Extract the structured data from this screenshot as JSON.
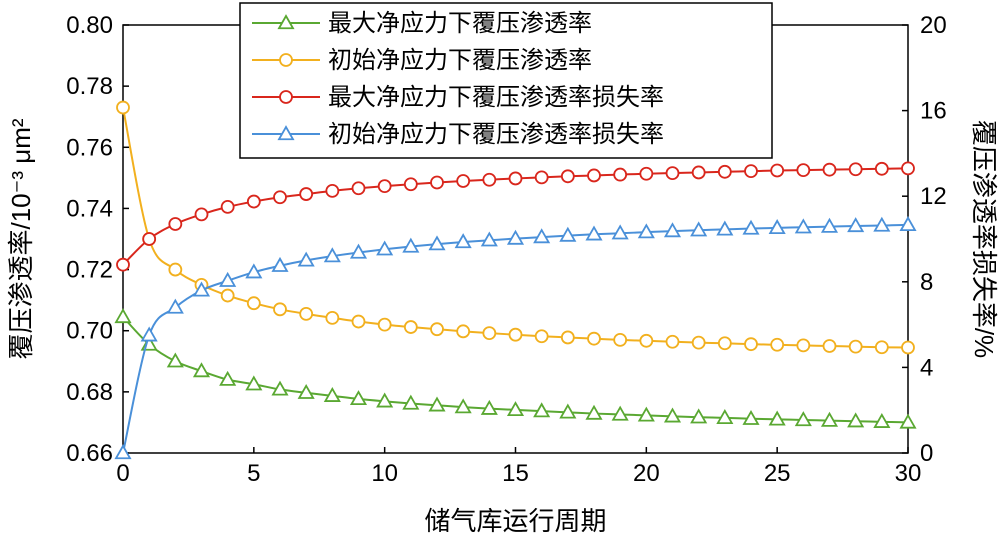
{
  "chart_data": {
    "type": "line",
    "title": "",
    "xlabel": "储气库运行周期",
    "ylabel_left": "覆压渗透率/10⁻³ μm²",
    "ylabel_right": "覆压渗透率损失率/%",
    "xlim": [
      0,
      30
    ],
    "ylim_left": [
      0.66,
      0.8
    ],
    "ylim_right": [
      0,
      20
    ],
    "x_ticks": [
      "0",
      "5",
      "10",
      "15",
      "20",
      "25",
      "30"
    ],
    "y_left_ticks": [
      "0.66",
      "0.68",
      "0.70",
      "0.72",
      "0.74",
      "0.76",
      "0.78",
      "0.80"
    ],
    "y_right_ticks": [
      "0",
      "4",
      "8",
      "12",
      "16",
      "20"
    ],
    "grid": false,
    "legend_position": "top-center",
    "x": [
      0,
      1,
      2,
      3,
      4,
      5,
      6,
      7,
      8,
      9,
      10,
      11,
      12,
      13,
      14,
      15,
      16,
      17,
      18,
      19,
      20,
      21,
      22,
      23,
      24,
      25,
      26,
      27,
      28,
      29,
      30
    ],
    "series": [
      {
        "name": "最大净应力下覆压渗透率",
        "axis": "left",
        "marker": "triangle",
        "color": "#5aa832",
        "values": [
          0.7045,
          0.6955,
          0.69,
          0.6868,
          0.684,
          0.6825,
          0.6808,
          0.6797,
          0.6787,
          0.6777,
          0.6769,
          0.6762,
          0.6756,
          0.675,
          0.6745,
          0.6741,
          0.6737,
          0.6733,
          0.6729,
          0.6726,
          0.6723,
          0.672,
          0.6717,
          0.6715,
          0.6712,
          0.671,
          0.6708,
          0.6706,
          0.6704,
          0.6702,
          0.67
        ]
      },
      {
        "name": "初始净应力下覆压渗透率",
        "axis": "left",
        "marker": "circle",
        "color": "#f2b01e",
        "values": [
          0.773,
          0.73,
          0.72,
          0.715,
          0.7115,
          0.709,
          0.707,
          0.7055,
          0.7042,
          0.703,
          0.702,
          0.7012,
          0.7005,
          0.6998,
          0.6992,
          0.6987,
          0.6982,
          0.6978,
          0.6974,
          0.697,
          0.6967,
          0.6964,
          0.6961,
          0.6959,
          0.6956,
          0.6954,
          0.6952,
          0.695,
          0.6948,
          0.6946,
          0.6945
        ]
      },
      {
        "name": "最大净应力下覆压渗透率损失率",
        "axis": "right",
        "marker": "circle",
        "color": "#d9261c",
        "values": [
          8.8,
          10.0,
          10.7,
          11.15,
          11.5,
          11.75,
          11.95,
          12.1,
          12.25,
          12.37,
          12.47,
          12.56,
          12.64,
          12.71,
          12.77,
          12.83,
          12.88,
          12.93,
          12.97,
          13.01,
          13.05,
          13.08,
          13.11,
          13.14,
          13.17,
          13.2,
          13.22,
          13.24,
          13.26,
          13.28,
          13.3
        ]
      },
      {
        "name": "初始净应力下覆压渗透率损失率",
        "axis": "right",
        "marker": "triangle",
        "color": "#4a90d9",
        "values": [
          0.0,
          5.5,
          6.8,
          7.6,
          8.05,
          8.45,
          8.75,
          9.0,
          9.2,
          9.37,
          9.52,
          9.65,
          9.76,
          9.86,
          9.94,
          10.02,
          10.09,
          10.16,
          10.22,
          10.27,
          10.32,
          10.37,
          10.41,
          10.45,
          10.49,
          10.52,
          10.55,
          10.58,
          10.61,
          10.63,
          10.66
        ]
      }
    ]
  }
}
